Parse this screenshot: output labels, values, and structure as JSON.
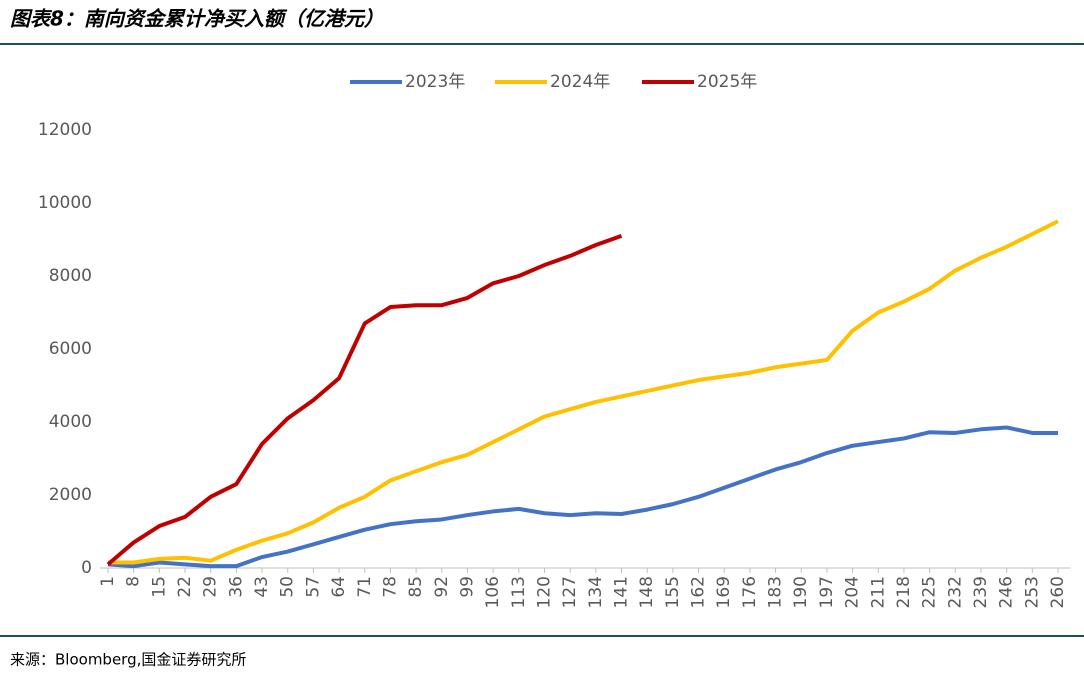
{
  "chart_data": {
    "type": "line",
    "title": "图表8：南向资金累计净买入额（亿港元）",
    "source": "来源：Bloomberg,国金证券研究所",
    "x": [
      1,
      8,
      15,
      22,
      29,
      36,
      43,
      50,
      57,
      64,
      71,
      78,
      85,
      92,
      99,
      106,
      113,
      120,
      127,
      134,
      141,
      148,
      155,
      162,
      169,
      176,
      183,
      190,
      197,
      204,
      211,
      218,
      225,
      232,
      239,
      246,
      253,
      260
    ],
    "xlim": [
      1,
      260
    ],
    "xticks": [
      1,
      8,
      15,
      22,
      29,
      36,
      43,
      50,
      57,
      64,
      71,
      78,
      85,
      92,
      99,
      106,
      113,
      120,
      127,
      134,
      141,
      148,
      155,
      162,
      169,
      176,
      183,
      190,
      197,
      204,
      211,
      218,
      225,
      232,
      239,
      246,
      253,
      260
    ],
    "ylim": [
      0,
      12000
    ],
    "yticks": [
      0,
      2000,
      4000,
      6000,
      8000,
      10000,
      12000
    ],
    "grid": false,
    "legend": "top",
    "series": [
      {
        "name": "2023年",
        "color": "#4472c4",
        "values": [
          100,
          50,
          150,
          100,
          50,
          50,
          300,
          450,
          650,
          850,
          1050,
          1200,
          1280,
          1330,
          1450,
          1550,
          1620,
          1500,
          1450,
          1500,
          1480,
          1600,
          1750,
          1950,
          2200,
          2450,
          2700,
          2900,
          3150,
          3350,
          3450,
          3550,
          3720,
          3700,
          3800,
          3850,
          3700,
          3700
        ]
      },
      {
        "name": "2024年",
        "color": "#ffc000",
        "values": [
          150,
          150,
          250,
          280,
          200,
          500,
          750,
          950,
          1250,
          1650,
          1950,
          2400,
          2650,
          2900,
          3100,
          3450,
          3800,
          4150,
          4350,
          4550,
          4700,
          4850,
          5000,
          5150,
          5250,
          5350,
          5500,
          5600,
          5700,
          6500,
          7000,
          7300,
          7650,
          8150,
          8500,
          8800,
          9150,
          9500
        ]
      },
      {
        "name": "2025年",
        "color": "#c00000",
        "values": [
          100,
          700,
          1150,
          1400,
          1950,
          2300,
          3400,
          4100,
          4600,
          5200,
          6700,
          7150,
          7200,
          7200,
          7400,
          7800,
          8000,
          8300,
          8550,
          8850,
          9100,
          null,
          null,
          null,
          null,
          null,
          null,
          null,
          null,
          null,
          null,
          null,
          null,
          null,
          null,
          null,
          null,
          null
        ]
      }
    ]
  }
}
